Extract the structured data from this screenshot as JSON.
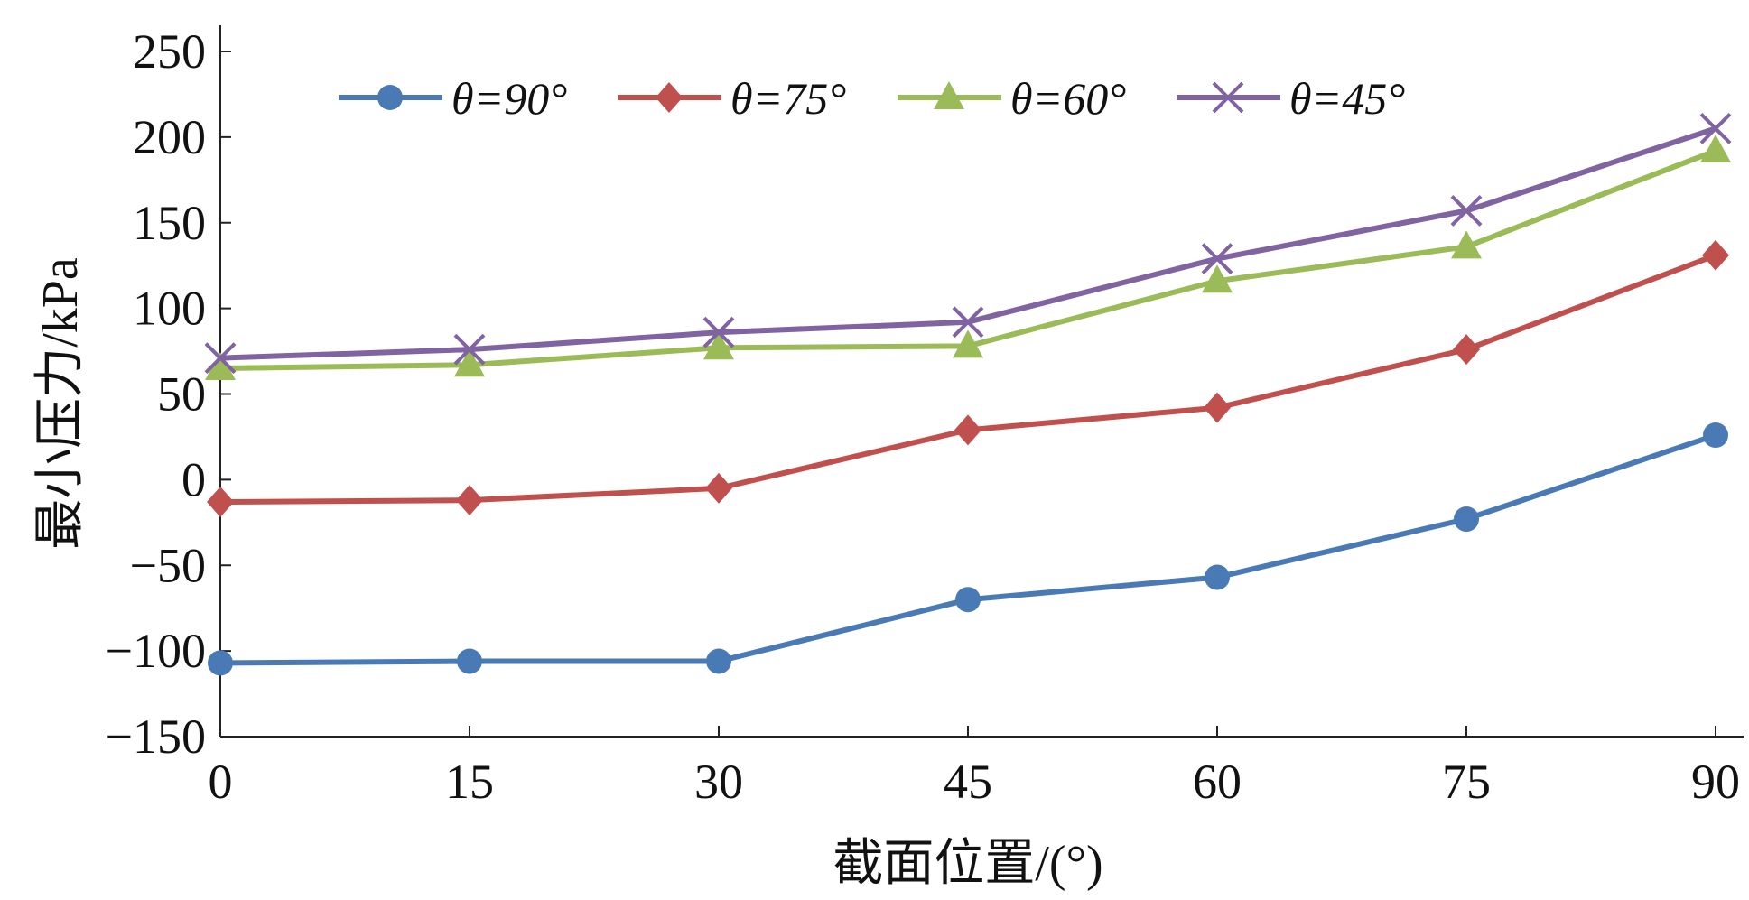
{
  "chart_data": {
    "type": "line",
    "title": "",
    "xlabel": "截面位置/(°)",
    "ylabel": "最小压力/kPa",
    "x": [
      0,
      15,
      30,
      45,
      60,
      75,
      90
    ],
    "xticks": [
      "0",
      "15",
      "30",
      "45",
      "60",
      "75",
      "90"
    ],
    "yticks": [
      "250",
      "200",
      "150",
      "100",
      "50",
      "0",
      "−50",
      "−100",
      "−150"
    ],
    "ytick_values": [
      250,
      200,
      150,
      100,
      50,
      0,
      -50,
      -100,
      -150
    ],
    "xlim": [
      0,
      90
    ],
    "ylim": [
      -150,
      250
    ],
    "grid": false,
    "legend_position": "top",
    "series": [
      {
        "name": "θ=90°",
        "color": "#4a7ab5",
        "marker": "circle",
        "values": [
          -107,
          -106,
          -106,
          -70,
          -57,
          -23,
          26
        ]
      },
      {
        "name": "θ=75°",
        "color": "#c0504d",
        "marker": "diamond",
        "values": [
          -13,
          -12,
          -5,
          29,
          42,
          76,
          131
        ]
      },
      {
        "name": "θ=60°",
        "color": "#9bbb59",
        "marker": "triangle",
        "values": [
          65,
          67,
          77,
          78,
          116,
          136,
          192
        ]
      },
      {
        "name": "θ=45°",
        "color": "#8064a2",
        "marker": "x",
        "values": [
          71,
          76,
          86,
          92,
          129,
          157,
          205
        ]
      }
    ]
  }
}
